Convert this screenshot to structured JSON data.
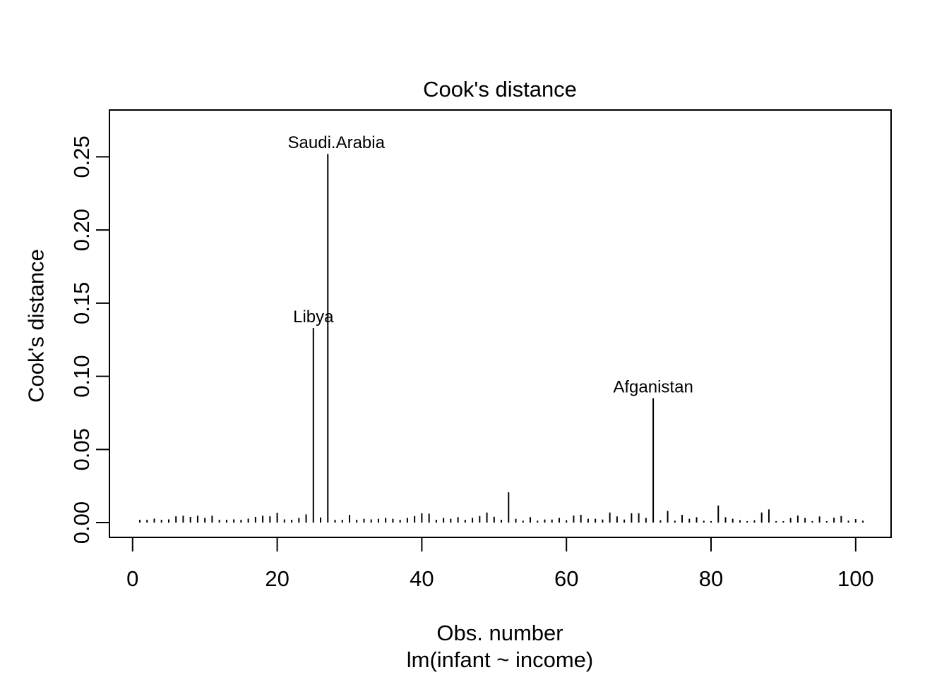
{
  "figure": {
    "background_color": "#ffffff",
    "axis_color": "#000000"
  },
  "chart_data": {
    "type": "bar",
    "style": "needle",
    "title": "Cook's distance",
    "xlabel": "Obs. number",
    "xlabel_sub": "lm(infant ~ income)",
    "ylabel": "Cook's distance",
    "x_ticks": [
      0,
      20,
      40,
      60,
      80,
      100
    ],
    "y_ticks": [
      0,
      0.05,
      0.1,
      0.15,
      0.2,
      0.25
    ],
    "y_tick_labels": [
      "0.00",
      "0.05",
      "0.10",
      "0.15",
      "0.20",
      "0.25"
    ],
    "xlim": [
      -3.2,
      104.9
    ],
    "ylim": [
      -0.0101,
      0.282
    ],
    "grid": false,
    "legend": null,
    "x_start": 1,
    "values": [
      0.0019,
      0.0019,
      0.0027,
      0.0019,
      0.0022,
      0.0043,
      0.0047,
      0.0039,
      0.0047,
      0.0032,
      0.0047,
      0.0019,
      0.0019,
      0.0022,
      0.0019,
      0.0027,
      0.0039,
      0.0047,
      0.0043,
      0.0067,
      0.0022,
      0.0019,
      0.0032,
      0.0056,
      0.133,
      0.0035,
      0.252,
      0.0019,
      0.0019,
      0.0053,
      0.0019,
      0.0026,
      0.0022,
      0.0026,
      0.0032,
      0.0026,
      0.0019,
      0.0032,
      0.0045,
      0.0064,
      0.0061,
      0.0019,
      0.0032,
      0.0026,
      0.0037,
      0.0019,
      0.0032,
      0.0045,
      0.0069,
      0.004,
      0.0019,
      0.0207,
      0.0026,
      0.0013,
      0.0037,
      0.0013,
      0.0021,
      0.0021,
      0.0032,
      0.0016,
      0.0048,
      0.0053,
      0.0026,
      0.0026,
      0.0021,
      0.0069,
      0.0042,
      0.0021,
      0.0064,
      0.0064,
      0.0032,
      0.085,
      0.0016,
      0.008,
      0.0013,
      0.0053,
      0.0026,
      0.0037,
      0.0013,
      0.001,
      0.0117,
      0.0037,
      0.0026,
      0.0016,
      0.001,
      0.0016,
      0.0069,
      0.009,
      0.001,
      0.001,
      0.0032,
      0.0048,
      0.0032,
      0.001,
      0.0042,
      0.001,
      0.0034,
      0.0045,
      0.0013,
      0.0024,
      0.0013
    ],
    "labeled_points": [
      {
        "obs": 25,
        "label": "Libya",
        "value": 0.133,
        "label_dx": 0
      },
      {
        "obs": 27,
        "label": "Saudi.Arabia",
        "value": 0.252,
        "label_dx": 12
      },
      {
        "obs": 72,
        "label": "Afganistan",
        "value": 0.085,
        "label_dx": 0
      }
    ]
  }
}
